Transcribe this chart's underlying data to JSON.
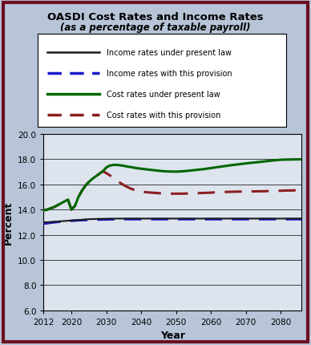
{
  "title": "OASDI Cost Rates and Income Rates",
  "subtitle": "(as a percentage of taxable payroll)",
  "xlabel": "Year",
  "ylabel": "Percent",
  "bg_color": "#b8c5d8",
  "plot_bg_color": "#dde4ee",
  "border_color": "#6b1020",
  "ylim": [
    6.0,
    20.0
  ],
  "yticks": [
    6.0,
    8.0,
    10.0,
    12.0,
    14.0,
    16.0,
    18.0,
    20.0
  ],
  "xlim": [
    2012,
    2086
  ],
  "xticks": [
    2012,
    2020,
    2030,
    2040,
    2050,
    2060,
    2070,
    2080
  ],
  "years": [
    2012,
    2013,
    2014,
    2015,
    2016,
    2017,
    2018,
    2019,
    2020,
    2021,
    2022,
    2023,
    2024,
    2025,
    2026,
    2027,
    2028,
    2029,
    2030,
    2031,
    2032,
    2033,
    2034,
    2035,
    2036,
    2037,
    2038,
    2039,
    2040,
    2041,
    2042,
    2043,
    2044,
    2045,
    2046,
    2047,
    2048,
    2049,
    2050,
    2051,
    2052,
    2053,
    2054,
    2055,
    2056,
    2057,
    2058,
    2059,
    2060,
    2061,
    2062,
    2063,
    2064,
    2065,
    2066,
    2067,
    2068,
    2069,
    2070,
    2071,
    2072,
    2073,
    2074,
    2075,
    2076,
    2077,
    2078,
    2079,
    2080,
    2081,
    2082,
    2083,
    2084,
    2085,
    2086
  ],
  "income_present_law": [
    13.0,
    13.0,
    13.02,
    13.04,
    13.06,
    13.08,
    13.1,
    13.12,
    13.14,
    13.16,
    13.18,
    13.2,
    13.22,
    13.24,
    13.25,
    13.26,
    13.27,
    13.27,
    13.28,
    13.28,
    13.28,
    13.29,
    13.29,
    13.29,
    13.29,
    13.29,
    13.29,
    13.29,
    13.29,
    13.29,
    13.29,
    13.29,
    13.29,
    13.29,
    13.29,
    13.29,
    13.29,
    13.29,
    13.29,
    13.29,
    13.29,
    13.29,
    13.29,
    13.29,
    13.29,
    13.29,
    13.29,
    13.29,
    13.29,
    13.29,
    13.29,
    13.29,
    13.29,
    13.29,
    13.29,
    13.29,
    13.29,
    13.29,
    13.29,
    13.29,
    13.29,
    13.29,
    13.29,
    13.29,
    13.29,
    13.29,
    13.29,
    13.29,
    13.29,
    13.29,
    13.29,
    13.29,
    13.29,
    13.29,
    13.29
  ],
  "income_provision": [
    12.88,
    12.92,
    12.96,
    12.99,
    13.02,
    13.05,
    13.07,
    13.09,
    13.11,
    13.13,
    13.15,
    13.16,
    13.17,
    13.18,
    13.19,
    13.2,
    13.21,
    13.22,
    13.22,
    13.23,
    13.23,
    13.23,
    13.24,
    13.24,
    13.24,
    13.24,
    13.24,
    13.24,
    13.24,
    13.24,
    13.24,
    13.24,
    13.24,
    13.24,
    13.24,
    13.24,
    13.24,
    13.24,
    13.24,
    13.24,
    13.24,
    13.24,
    13.24,
    13.24,
    13.24,
    13.24,
    13.24,
    13.24,
    13.24,
    13.24,
    13.24,
    13.24,
    13.24,
    13.24,
    13.24,
    13.24,
    13.24,
    13.24,
    13.24,
    13.24,
    13.24,
    13.24,
    13.24,
    13.24,
    13.24,
    13.24,
    13.24,
    13.24,
    13.24,
    13.24,
    13.24,
    13.24,
    13.24,
    13.24,
    13.24
  ],
  "cost_present_law": [
    13.95,
    14.0,
    14.1,
    14.2,
    14.35,
    14.5,
    14.65,
    14.8,
    14.0,
    14.3,
    15.0,
    15.5,
    15.9,
    16.2,
    16.45,
    16.65,
    16.85,
    17.05,
    17.35,
    17.5,
    17.55,
    17.55,
    17.52,
    17.48,
    17.42,
    17.38,
    17.33,
    17.28,
    17.25,
    17.22,
    17.18,
    17.15,
    17.12,
    17.09,
    17.06,
    17.04,
    17.03,
    17.02,
    17.02,
    17.03,
    17.05,
    17.07,
    17.1,
    17.13,
    17.16,
    17.19,
    17.22,
    17.26,
    17.3,
    17.34,
    17.38,
    17.42,
    17.46,
    17.5,
    17.54,
    17.57,
    17.6,
    17.64,
    17.67,
    17.7,
    17.73,
    17.76,
    17.79,
    17.82,
    17.85,
    17.88,
    17.91,
    17.94,
    17.96,
    17.97,
    17.98,
    17.98,
    17.99,
    17.99,
    18.0
  ],
  "cost_provision": [
    13.95,
    14.0,
    14.1,
    14.2,
    14.35,
    14.5,
    14.65,
    14.8,
    14.0,
    14.3,
    15.0,
    15.5,
    15.9,
    16.2,
    16.45,
    16.65,
    16.85,
    17.05,
    16.9,
    16.72,
    16.52,
    16.32,
    16.12,
    15.95,
    15.8,
    15.67,
    15.57,
    15.5,
    15.44,
    15.4,
    15.37,
    15.35,
    15.33,
    15.31,
    15.3,
    15.29,
    15.28,
    15.27,
    15.27,
    15.27,
    15.27,
    15.28,
    15.29,
    15.3,
    15.31,
    15.32,
    15.33,
    15.34,
    15.35,
    15.37,
    15.38,
    15.39,
    15.4,
    15.41,
    15.42,
    15.43,
    15.43,
    15.44,
    15.44,
    15.45,
    15.45,
    15.45,
    15.46,
    15.46,
    15.47,
    15.47,
    15.48,
    15.49,
    15.5,
    15.51,
    15.52,
    15.52,
    15.53,
    15.54,
    15.55
  ],
  "income_present_law_color": "#1a1a1a",
  "income_provision_color": "#1a1acc",
  "cost_present_law_color": "#006600",
  "cost_provision_color": "#8b2020",
  "legend_labels": [
    "Income rates under present law",
    "Income rates with this provision",
    "Cost rates under present law",
    "Cost rates with this provision"
  ]
}
